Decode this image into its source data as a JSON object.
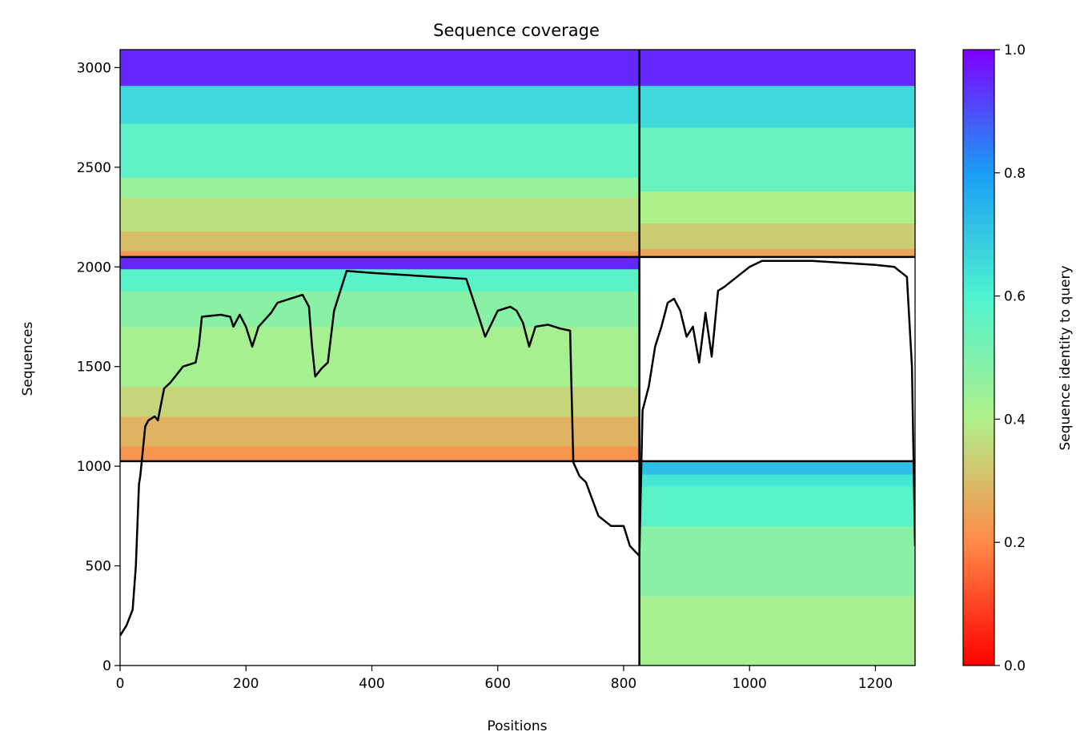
{
  "chart_data": {
    "type": "heatmap",
    "title": "Sequence coverage",
    "xlabel": "Positions",
    "ylabel": "Sequences",
    "xlim": [
      0,
      1263
    ],
    "ylim": [
      0,
      3090
    ],
    "x_ticks": [
      0,
      200,
      400,
      600,
      800,
      1000,
      1200
    ],
    "y_ticks": [
      0,
      500,
      1000,
      1500,
      2000,
      2500,
      3000
    ],
    "colormap": "rainbow_r",
    "colorbar": {
      "label": "Sequence identity to query",
      "ticks": [
        0.0,
        0.2,
        0.4,
        0.6,
        0.8,
        1.0
      ],
      "tick_labels": [
        "0.0",
        "0.2",
        "0.4",
        "0.6",
        "0.8",
        "1.0"
      ]
    },
    "chain_boundaries_x": [
      825
    ],
    "block_boundaries_y": [
      1025,
      2050
    ],
    "blocks": [
      {
        "x_start": 0,
        "x_end": 825,
        "y_start": 2050,
        "y_end": 3090,
        "identity_bands": [
          {
            "y0": 2050,
            "y1": 2080,
            "identity": 0.22
          },
          {
            "y0": 2080,
            "y1": 2180,
            "identity": 0.3
          },
          {
            "y0": 2180,
            "y1": 2350,
            "identity": 0.37
          },
          {
            "y0": 2350,
            "y1": 2450,
            "identity": 0.45
          },
          {
            "y0": 2450,
            "y1": 2720,
            "identity": 0.57
          },
          {
            "y0": 2720,
            "y1": 2910,
            "identity": 0.66
          },
          {
            "y0": 2910,
            "y1": 3090,
            "identity": 0.95
          }
        ]
      },
      {
        "x_start": 825,
        "x_end": 1263,
        "y_start": 2050,
        "y_end": 3090,
        "identity_bands": [
          {
            "y0": 2050,
            "y1": 2090,
            "identity": 0.25
          },
          {
            "y0": 2090,
            "y1": 2220,
            "identity": 0.33
          },
          {
            "y0": 2220,
            "y1": 2380,
            "identity": 0.4
          },
          {
            "y0": 2380,
            "y1": 2700,
            "identity": 0.55
          },
          {
            "y0": 2700,
            "y1": 2910,
            "identity": 0.66
          },
          {
            "y0": 2910,
            "y1": 3090,
            "identity": 0.95
          }
        ]
      },
      {
        "x_start": 0,
        "x_end": 825,
        "y_start": 1025,
        "y_end": 2050,
        "identity_bands": [
          {
            "y0": 1025,
            "y1": 1100,
            "identity": 0.22
          },
          {
            "y0": 1100,
            "y1": 1250,
            "identity": 0.28
          },
          {
            "y0": 1250,
            "y1": 1400,
            "identity": 0.35
          },
          {
            "y0": 1400,
            "y1": 1700,
            "identity": 0.42
          },
          {
            "y0": 1700,
            "y1": 1880,
            "identity": 0.48
          },
          {
            "y0": 1880,
            "y1": 1990,
            "identity": 0.58
          },
          {
            "y0": 1990,
            "y1": 2050,
            "identity": 0.95
          }
        ]
      },
      {
        "x_start": 825,
        "x_end": 1263,
        "y_start": 0,
        "y_end": 1025,
        "identity_bands": [
          {
            "y0": 0,
            "y1": 350,
            "identity": 0.42
          },
          {
            "y0": 350,
            "y1": 700,
            "identity": 0.48
          },
          {
            "y0": 700,
            "y1": 900,
            "identity": 0.58
          },
          {
            "y0": 900,
            "y1": 960,
            "identity": 0.63
          },
          {
            "y0": 960,
            "y1": 1025,
            "identity": 0.72
          }
        ]
      }
    ],
    "coverage_line": {
      "x": [
        0,
        10,
        20,
        25,
        30,
        32,
        40,
        45,
        50,
        55,
        60,
        70,
        80,
        100,
        120,
        125,
        130,
        160,
        175,
        180,
        190,
        200,
        210,
        220,
        240,
        250,
        270,
        290,
        300,
        305,
        310,
        320,
        330,
        340,
        360,
        400,
        450,
        500,
        550,
        570,
        580,
        600,
        620,
        630,
        640,
        650,
        660,
        680,
        700,
        715,
        720,
        730,
        740,
        760,
        780,
        800,
        810,
        825,
        830,
        840,
        850,
        860,
        870,
        880,
        890,
        900,
        910,
        920,
        930,
        940,
        950,
        960,
        980,
        1000,
        1020,
        1050,
        1100,
        1150,
        1200,
        1230,
        1250,
        1258,
        1263
      ],
      "y": [
        150,
        200,
        280,
        500,
        910,
        950,
        1200,
        1230,
        1240,
        1250,
        1230,
        1390,
        1420,
        1500,
        1520,
        1600,
        1750,
        1760,
        1750,
        1700,
        1760,
        1700,
        1600,
        1700,
        1770,
        1820,
        1840,
        1860,
        1800,
        1600,
        1450,
        1490,
        1520,
        1780,
        1980,
        1970,
        1960,
        1950,
        1940,
        1750,
        1650,
        1780,
        1800,
        1780,
        1720,
        1600,
        1700,
        1710,
        1690,
        1680,
        1020,
        950,
        920,
        750,
        700,
        700,
        600,
        550,
        1280,
        1400,
        1600,
        1700,
        1820,
        1840,
        1780,
        1650,
        1700,
        1520,
        1770,
        1550,
        1880,
        1900,
        1950,
        2000,
        2030,
        2030,
        2030,
        2020,
        2010,
        2000,
        1950,
        1500,
        600
      ]
    }
  }
}
